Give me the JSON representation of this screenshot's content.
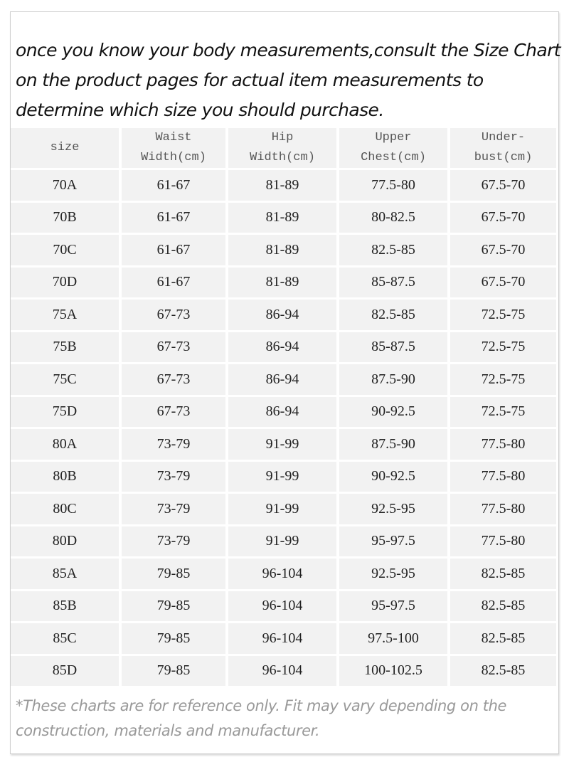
{
  "intro": [
    "once you know your body measurements,consult the Size Chart",
    "on the product pages for actual item measurements to",
    "determine which size you should purchase."
  ],
  "table": {
    "headers": [
      [
        "size"
      ],
      [
        "Waist",
        "Width(cm)"
      ],
      [
        "Hip",
        "Width(cm)"
      ],
      [
        "Upper",
        "Chest(cm)"
      ],
      [
        "Under-",
        "bust(cm)"
      ]
    ],
    "rows": [
      [
        "70A",
        "61-67",
        "81-89",
        "77.5-80",
        "67.5-70"
      ],
      [
        "70B",
        "61-67",
        "81-89",
        "80-82.5",
        "67.5-70"
      ],
      [
        "70C",
        "61-67",
        "81-89",
        "82.5-85",
        "67.5-70"
      ],
      [
        "70D",
        "61-67",
        "81-89",
        "85-87.5",
        "67.5-70"
      ],
      [
        "75A",
        "67-73",
        "86-94",
        "82.5-85",
        "72.5-75"
      ],
      [
        "75B",
        "67-73",
        "86-94",
        "85-87.5",
        "72.5-75"
      ],
      [
        "75C",
        "67-73",
        "86-94",
        "87.5-90",
        "72.5-75"
      ],
      [
        "75D",
        "67-73",
        "86-94",
        "90-92.5",
        "72.5-75"
      ],
      [
        "80A",
        "73-79",
        "91-99",
        "87.5-90",
        "77.5-80"
      ],
      [
        "80B",
        "73-79",
        "91-99",
        "90-92.5",
        "77.5-80"
      ],
      [
        "80C",
        "73-79",
        "91-99",
        "92.5-95",
        "77.5-80"
      ],
      [
        "80D",
        "73-79",
        "91-99",
        "95-97.5",
        "77.5-80"
      ],
      [
        "85A",
        "79-85",
        "96-104",
        "92.5-95",
        "82.5-85"
      ],
      [
        "85B",
        "79-85",
        "96-104",
        "95-97.5",
        "82.5-85"
      ],
      [
        "85C",
        "79-85",
        "96-104",
        "97.5-100",
        "82.5-85"
      ],
      [
        "85D",
        "79-85",
        "96-104",
        "100-102.5",
        "82.5-85"
      ]
    ]
  },
  "note": [
    "*These charts are for reference only. Fit may vary depending on the",
    "construction, materials and manufacturer."
  ],
  "colors": {
    "cell_bg": "#f2f2f2",
    "note_text": "#999999"
  }
}
